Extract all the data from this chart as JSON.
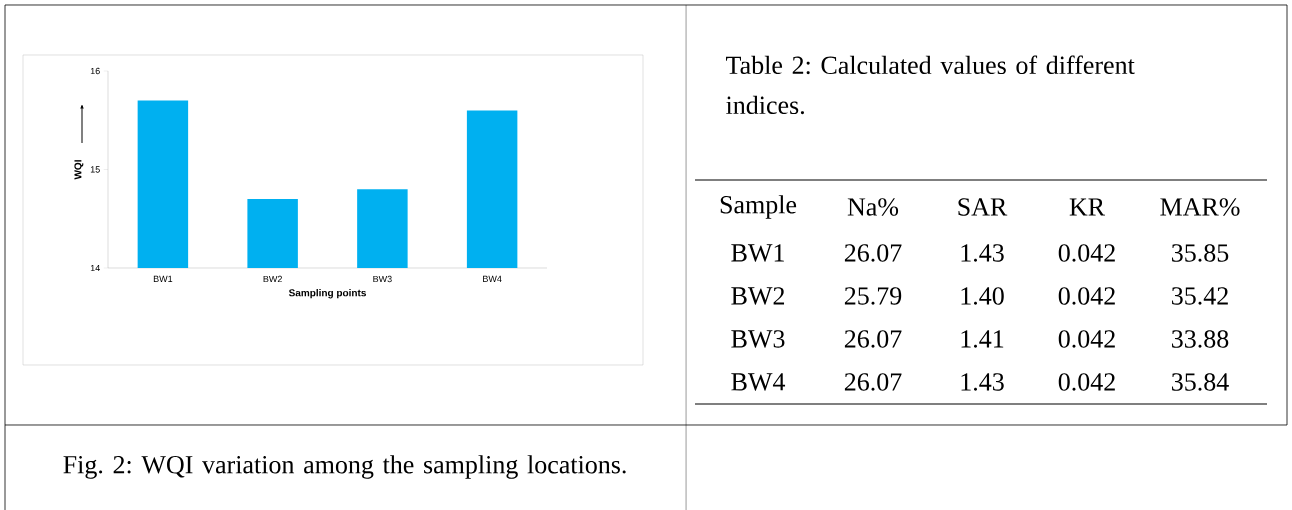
{
  "chart_data": [
    {
      "type": "bar",
      "xlabel": "Sampling points",
      "ylabel": "WQI",
      "categories": [
        "BW1",
        "BW2",
        "BW3",
        "BW4"
      ],
      "values": [
        15.7,
        14.7,
        14.8,
        15.6
      ],
      "color": "#00b0f0",
      "ylim": [
        14,
        16
      ],
      "yticks": [
        14,
        15,
        16
      ],
      "annotations": [
        "Fig. 2: WQI variation among the sampling locations."
      ]
    },
    {
      "type": "other",
      "title": "Table 2: Calculated values of different indices.",
      "categories": [
        "Sample",
        "Na%",
        "SAR",
        "KR",
        "MAR%"
      ],
      "y_categories": [
        "BW1",
        "BW2",
        "BW3",
        "BW4"
      ],
      "cell_labels": [
        [
          "26.07",
          "1.43",
          "0.042",
          "35.85"
        ],
        [
          "25.79",
          "1.40",
          "0.042",
          "35.42"
        ],
        [
          "26.07",
          "1.41",
          "0.042",
          "33.88"
        ],
        [
          "26.07",
          "1.43",
          "0.042",
          "35.84"
        ]
      ]
    }
  ]
}
